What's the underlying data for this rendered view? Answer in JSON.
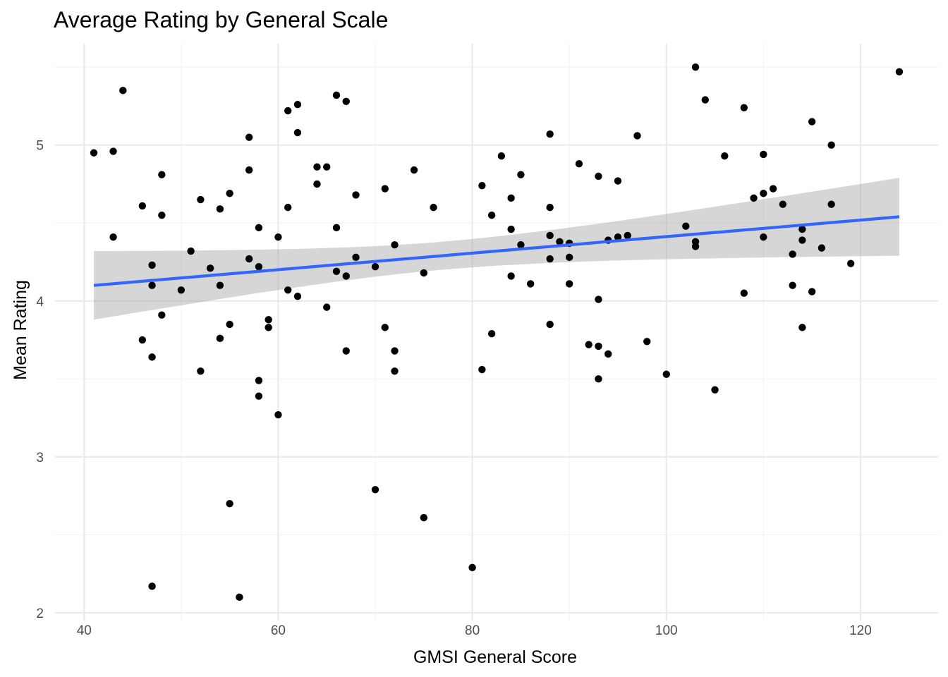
{
  "chart_data": {
    "type": "scatter",
    "title": "Average Rating by General Scale",
    "xlabel": "GMSI General Score",
    "ylabel": "Mean Rating",
    "xlim": [
      37,
      128
    ],
    "ylim": [
      1.95,
      5.65
    ],
    "x_ticks": [
      40,
      60,
      80,
      100,
      120
    ],
    "y_ticks": [
      2,
      3,
      4,
      5
    ],
    "grid": true,
    "points": [
      [
        41,
        4.95
      ],
      [
        43,
        4.96
      ],
      [
        43,
        4.41
      ],
      [
        44,
        5.35
      ],
      [
        46,
        4.61
      ],
      [
        46,
        3.75
      ],
      [
        47,
        4.23
      ],
      [
        47,
        4.1
      ],
      [
        47,
        3.64
      ],
      [
        47,
        2.17
      ],
      [
        48,
        4.81
      ],
      [
        48,
        4.55
      ],
      [
        48,
        3.91
      ],
      [
        50,
        4.07
      ],
      [
        51,
        4.32
      ],
      [
        52,
        4.65
      ],
      [
        52,
        3.55
      ],
      [
        53,
        4.21
      ],
      [
        54,
        4.59
      ],
      [
        54,
        4.1
      ],
      [
        54,
        3.76
      ],
      [
        55,
        4.69
      ],
      [
        55,
        3.85
      ],
      [
        55,
        2.7
      ],
      [
        56,
        2.1
      ],
      [
        57,
        5.05
      ],
      [
        57,
        4.84
      ],
      [
        57,
        4.27
      ],
      [
        58,
        4.47
      ],
      [
        58,
        4.22
      ],
      [
        58,
        3.49
      ],
      [
        58,
        3.39
      ],
      [
        59,
        3.88
      ],
      [
        59,
        3.83
      ],
      [
        60,
        4.41
      ],
      [
        60,
        3.27
      ],
      [
        61,
        5.22
      ],
      [
        61,
        4.6
      ],
      [
        61,
        4.07
      ],
      [
        62,
        5.26
      ],
      [
        62,
        5.08
      ],
      [
        62,
        4.03
      ],
      [
        64,
        4.86
      ],
      [
        64,
        4.75
      ],
      [
        65,
        4.86
      ],
      [
        65,
        3.96
      ],
      [
        66,
        5.32
      ],
      [
        66,
        4.47
      ],
      [
        66,
        4.19
      ],
      [
        67,
        5.28
      ],
      [
        67,
        4.16
      ],
      [
        67,
        3.68
      ],
      [
        68,
        4.68
      ],
      [
        68,
        4.28
      ],
      [
        70,
        4.22
      ],
      [
        70,
        2.79
      ],
      [
        71,
        4.72
      ],
      [
        71,
        3.83
      ],
      [
        72,
        4.36
      ],
      [
        72,
        3.68
      ],
      [
        72,
        3.55
      ],
      [
        74,
        4.84
      ],
      [
        75,
        4.18
      ],
      [
        75,
        2.61
      ],
      [
        76,
        4.6
      ],
      [
        80,
        2.29
      ],
      [
        81,
        4.74
      ],
      [
        81,
        3.56
      ],
      [
        82,
        4.55
      ],
      [
        82,
        3.79
      ],
      [
        83,
        4.93
      ],
      [
        84,
        4.66
      ],
      [
        84,
        4.46
      ],
      [
        84,
        4.16
      ],
      [
        85,
        4.81
      ],
      [
        85,
        4.36
      ],
      [
        86,
        4.11
      ],
      [
        88,
        5.07
      ],
      [
        88,
        4.6
      ],
      [
        88,
        4.42
      ],
      [
        88,
        4.27
      ],
      [
        88,
        3.85
      ],
      [
        89,
        4.38
      ],
      [
        90,
        4.37
      ],
      [
        90,
        4.28
      ],
      [
        90,
        4.11
      ],
      [
        91,
        4.88
      ],
      [
        92,
        3.72
      ],
      [
        93,
        4.8
      ],
      [
        93,
        4.01
      ],
      [
        93,
        3.71
      ],
      [
        93,
        3.5
      ],
      [
        94,
        4.39
      ],
      [
        94,
        3.66
      ],
      [
        95,
        4.77
      ],
      [
        95,
        4.41
      ],
      [
        96,
        4.42
      ],
      [
        97,
        5.06
      ],
      [
        98,
        3.74
      ],
      [
        100,
        3.53
      ],
      [
        102,
        4.48
      ],
      [
        103,
        5.5
      ],
      [
        103,
        4.38
      ],
      [
        103,
        4.35
      ],
      [
        104,
        5.29
      ],
      [
        105,
        3.43
      ],
      [
        106,
        4.93
      ],
      [
        108,
        5.24
      ],
      [
        108,
        4.05
      ],
      [
        109,
        4.66
      ],
      [
        110,
        4.94
      ],
      [
        110,
        4.69
      ],
      [
        110,
        4.41
      ],
      [
        111,
        4.72
      ],
      [
        112,
        4.62
      ],
      [
        113,
        4.3
      ],
      [
        113,
        4.1
      ],
      [
        114,
        4.46
      ],
      [
        114,
        4.39
      ],
      [
        114,
        3.83
      ],
      [
        115,
        5.15
      ],
      [
        115,
        4.06
      ],
      [
        116,
        4.34
      ],
      [
        117,
        5.0
      ],
      [
        117,
        4.62
      ],
      [
        119,
        4.24
      ],
      [
        124,
        5.47
      ]
    ],
    "trend": {
      "x_start": 41,
      "x_end": 124,
      "y_start": 4.1,
      "y_end": 4.54,
      "ci_lower": [
        3.88,
        4.28
      ],
      "ci_upper": [
        4.32,
        4.79
      ],
      "ci_x_center": 77
    },
    "colors": {
      "points": "#000000",
      "line": "#3366ff",
      "ribbon": "#999999",
      "grid_major": "#ebebeb",
      "grid_minor": "#f3f3f3"
    }
  }
}
